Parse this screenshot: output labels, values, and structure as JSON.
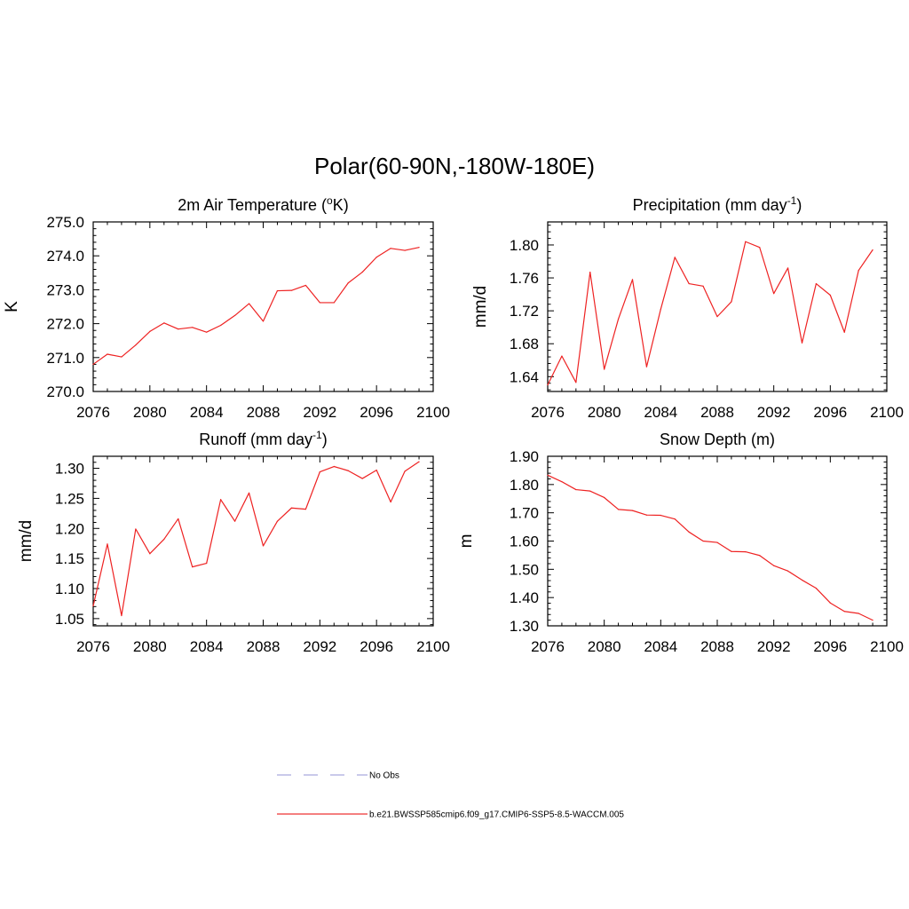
{
  "figure_title": "Polar(60-90N,-180W-180E)",
  "legend": [
    {
      "label": "No Obs",
      "color": "#a9a9dd",
      "dash": true
    },
    {
      "label": "b.e21.BWSSP585cmip6.f09_g17.CMIP6-SSP5-8.5-WACCM.005",
      "color": "#ee3333",
      "dash": false
    }
  ],
  "chart_data": [
    {
      "type": "line",
      "title": "2m Air Temperature (",
      "title_sup": "o",
      "title_tail": "K)",
      "ylabel": "K",
      "xlim": [
        2076,
        2100
      ],
      "ylim": [
        270.0,
        275.0
      ],
      "xticks": [
        2076,
        2080,
        2084,
        2088,
        2092,
        2096,
        2100
      ],
      "yticks": [
        270.0,
        271.0,
        272.0,
        273.0,
        274.0,
        275.0
      ],
      "ytick_labels": [
        "270.0",
        "271.0",
        "272.0",
        "273.0",
        "274.0",
        "275.0"
      ],
      "yminor": 0.2,
      "x": [
        2076,
        2077,
        2078,
        2079,
        2080,
        2081,
        2082,
        2083,
        2084,
        2085,
        2086,
        2087,
        2088,
        2089,
        2090,
        2091,
        2092,
        2093,
        2094,
        2095,
        2096,
        2097,
        2098,
        2099
      ],
      "series": [
        {
          "name": "b.e21.BWSSP585cmip6.f09_g17.CMIP6-SSP5-8.5-WACCM.005",
          "color": "#ee2222",
          "values": [
            270.8,
            271.1,
            271.02,
            271.37,
            271.77,
            272.02,
            271.84,
            271.89,
            271.75,
            271.95,
            272.24,
            272.59,
            272.07,
            272.97,
            272.98,
            273.13,
            272.62,
            272.62,
            273.2,
            273.52,
            273.96,
            274.22,
            274.16,
            274.25
          ]
        }
      ]
    },
    {
      "type": "line",
      "title": "Precipitation (mm day",
      "title_sup": "-1",
      "title_tail": ")",
      "ylabel": "mm/d",
      "xlim": [
        2076,
        2100
      ],
      "ylim": [
        1.622,
        1.828
      ],
      "xticks": [
        2076,
        2080,
        2084,
        2088,
        2092,
        2096,
        2100
      ],
      "yticks": [
        1.64,
        1.68,
        1.72,
        1.76,
        1.8
      ],
      "ytick_labels": [
        "1.64",
        "1.68",
        "1.72",
        "1.76",
        "1.80"
      ],
      "yminor": 0.008,
      "x": [
        2076,
        2077,
        2078,
        2079,
        2080,
        2081,
        2082,
        2083,
        2084,
        2085,
        2086,
        2087,
        2088,
        2089,
        2090,
        2091,
        2092,
        2093,
        2094,
        2095,
        2096,
        2097,
        2098,
        2099
      ],
      "series": [
        {
          "name": "b.e21.BWSSP585cmip6.f09_g17.CMIP6-SSP5-8.5-WACCM.005",
          "color": "#ee2222",
          "values": [
            1.63,
            1.665,
            1.633,
            1.767,
            1.649,
            1.71,
            1.758,
            1.652,
            1.722,
            1.785,
            1.753,
            1.75,
            1.713,
            1.731,
            1.804,
            1.797,
            1.741,
            1.772,
            1.681,
            1.753,
            1.739,
            1.694,
            1.769,
            1.794
          ]
        }
      ]
    },
    {
      "type": "line",
      "title": "Runoff (mm day",
      "title_sup": "-1",
      "title_tail": ")",
      "ylabel": "mm/d",
      "xlim": [
        2076,
        2100
      ],
      "ylim": [
        1.038,
        1.32
      ],
      "xticks": [
        2076,
        2080,
        2084,
        2088,
        2092,
        2096,
        2100
      ],
      "yticks": [
        1.05,
        1.1,
        1.15,
        1.2,
        1.25,
        1.3
      ],
      "ytick_labels": [
        "1.05",
        "1.10",
        "1.15",
        "1.20",
        "1.25",
        "1.30"
      ],
      "yminor": 0.01,
      "x": [
        2076,
        2077,
        2078,
        2079,
        2080,
        2081,
        2082,
        2083,
        2084,
        2085,
        2086,
        2087,
        2088,
        2089,
        2090,
        2091,
        2092,
        2093,
        2094,
        2095,
        2096,
        2097,
        2098,
        2099
      ],
      "series": [
        {
          "name": "b.e21.BWSSP585cmip6.f09_g17.CMIP6-SSP5-8.5-WACCM.005",
          "color": "#ee2222",
          "values": [
            1.071,
            1.174,
            1.055,
            1.199,
            1.158,
            1.182,
            1.216,
            1.136,
            1.142,
            1.248,
            1.212,
            1.259,
            1.171,
            1.212,
            1.234,
            1.232,
            1.294,
            1.303,
            1.296,
            1.283,
            1.297,
            1.244,
            1.295,
            1.311
          ]
        }
      ]
    },
    {
      "type": "line",
      "title": "Snow Depth (m)",
      "title_sup": "",
      "title_tail": "",
      "ylabel": "m",
      "xlim": [
        2076,
        2100
      ],
      "ylim": [
        1.3,
        1.9
      ],
      "xticks": [
        2076,
        2080,
        2084,
        2088,
        2092,
        2096,
        2100
      ],
      "yticks": [
        1.3,
        1.4,
        1.5,
        1.6,
        1.7,
        1.8,
        1.9
      ],
      "ytick_labels": [
        "1.30",
        "1.40",
        "1.50",
        "1.60",
        "1.70",
        "1.80",
        "1.90"
      ],
      "yminor": 0.02,
      "x": [
        2076,
        2077,
        2078,
        2079,
        2080,
        2081,
        2082,
        2083,
        2084,
        2085,
        2086,
        2087,
        2088,
        2089,
        2090,
        2091,
        2092,
        2093,
        2094,
        2095,
        2096,
        2097,
        2098,
        2099
      ],
      "series": [
        {
          "name": "b.e21.BWSSP585cmip6.f09_g17.CMIP6-SSP5-8.5-WACCM.005",
          "color": "#ee2222",
          "values": [
            1.833,
            1.81,
            1.782,
            1.777,
            1.754,
            1.712,
            1.708,
            1.692,
            1.691,
            1.678,
            1.632,
            1.6,
            1.595,
            1.563,
            1.562,
            1.549,
            1.513,
            1.494,
            1.462,
            1.433,
            1.381,
            1.351,
            1.344,
            1.32
          ]
        }
      ]
    }
  ]
}
